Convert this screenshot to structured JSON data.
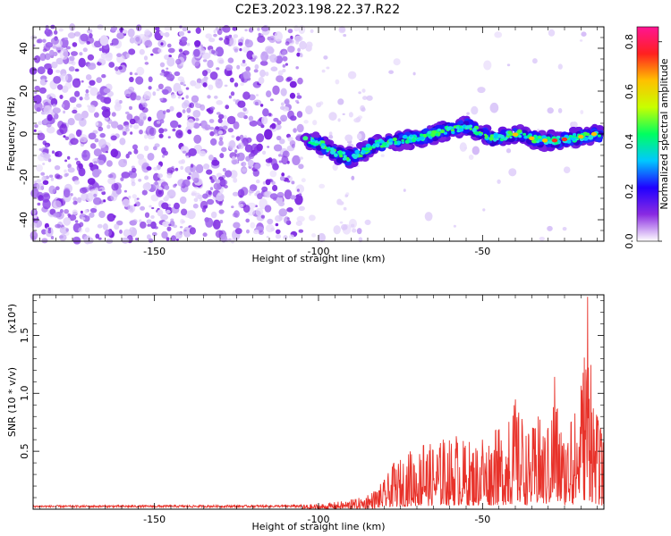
{
  "title": "C2E3.2023.198.22.37.R22",
  "chart_data": [
    {
      "type": "heatmap",
      "xlabel": "Height of straight line (km)",
      "ylabel": "Frequency (Hz)",
      "xlim": [
        -187,
        -13
      ],
      "ylim": [
        -50,
        50
      ],
      "xticks": [
        -150,
        -100,
        -50
      ],
      "yticks": [
        -40,
        -20,
        0,
        20,
        40
      ],
      "colorbar": {
        "label": "Normalized spectral amplitude",
        "range": [
          0,
          0.86
        ],
        "ticks": [
          0.0,
          0.2,
          0.4,
          0.6,
          0.8
        ],
        "colormap": [
          "#ffffff",
          "#8a2be2",
          "#2000ff",
          "#00c8ff",
          "#00ff60",
          "#c8ff00",
          "#ffc000",
          "#ff2020",
          "#ff1493"
        ]
      },
      "signal_track": {
        "x": [
          -104,
          -99,
          -95,
          -91,
          -87,
          -83,
          -79,
          -75,
          -71,
          -67,
          -63,
          -59,
          -55,
          -51,
          -47,
          -43,
          -39,
          -35,
          -31,
          -27,
          -23,
          -19,
          -16,
          -14
        ],
        "y": [
          -2,
          -5,
          -9,
          -11,
          -9,
          -5,
          -4,
          -3,
          -2,
          -1,
          1,
          2,
          4,
          1,
          -2,
          -1,
          0,
          -2,
          -3,
          -3,
          -2,
          -1,
          0,
          -1
        ]
      }
    },
    {
      "type": "line",
      "xlabel": "Height of straight line (km)",
      "ylabel": "SNR (10 * v/v)",
      "y_multiplier": "(x10⁴)",
      "xlim": [
        -187,
        -13
      ],
      "ylim": [
        0,
        18500
      ],
      "xticks": [
        -150,
        -100,
        -50
      ],
      "yticks": [
        5000,
        10000,
        15000
      ],
      "ytick_labels": [
        "0.5",
        "1.0",
        "1.5"
      ],
      "series_color": "#e8322a",
      "peaks": {
        "x": [
          -187,
          -110,
          -100,
          -90,
          -85,
          -80,
          -77,
          -72,
          -68,
          -62,
          -58,
          -54,
          -50,
          -46,
          -42,
          -40,
          -38,
          -36,
          -33,
          -30,
          -28,
          -26,
          -23,
          -20,
          -18,
          -17,
          -15,
          -14,
          -13
        ],
        "y": [
          300,
          350,
          450,
          800,
          1200,
          2500,
          4000,
          5000,
          5500,
          6000,
          6300,
          5800,
          6000,
          6800,
          7500,
          9500,
          7800,
          6500,
          8000,
          7000,
          11500,
          6500,
          7500,
          10500,
          18500,
          12500,
          8000,
          7000,
          5500
        ]
      }
    }
  ]
}
